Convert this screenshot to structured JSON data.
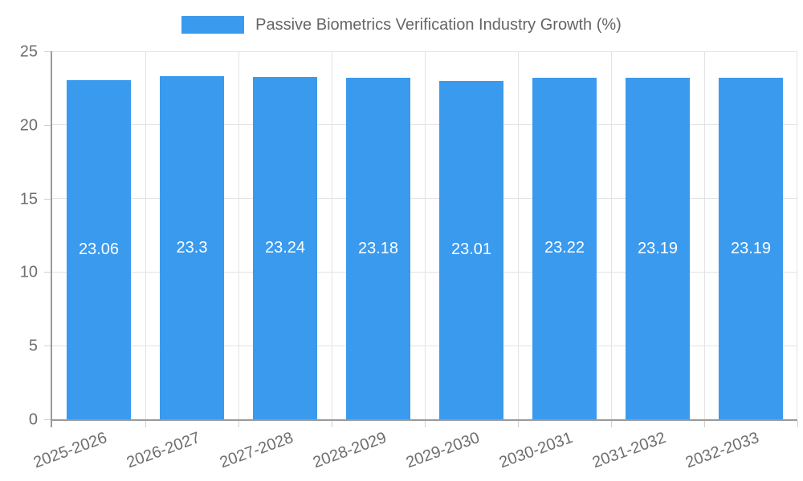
{
  "chart_data": {
    "type": "bar",
    "title": "Passive Biometrics Verification Industry Growth (%)",
    "legend_position": "top",
    "categories": [
      "2025-2026",
      "2026-2027",
      "2027-2028",
      "2028-2029",
      "2029-2030",
      "2030-2031",
      "2031-2032",
      "2032-2033"
    ],
    "series": [
      {
        "name": "Passive Biometrics Verification Industry Growth (%)",
        "values": [
          23.06,
          23.3,
          23.24,
          23.18,
          23.01,
          23.22,
          23.19,
          23.19
        ],
        "value_labels": [
          "23.06",
          "23.3",
          "23.24",
          "23.18",
          "23.01",
          "23.22",
          "23.19",
          "23.19"
        ]
      }
    ],
    "xlabel": "",
    "ylabel": "",
    "ylim": [
      0,
      25
    ],
    "yticks": [
      0,
      5,
      10,
      15,
      20,
      25
    ],
    "grid": true,
    "x_label_rotation_deg": -20
  },
  "colors": {
    "bar": "#3a9aee",
    "bar_label": "#ffffff",
    "axis": "#9a9a9a",
    "gridline": "#e3e3e3",
    "tick_mark": "#cfcfcf",
    "tick_text": "#6e6e6e",
    "title_text": "#666666",
    "background": "#ffffff"
  }
}
